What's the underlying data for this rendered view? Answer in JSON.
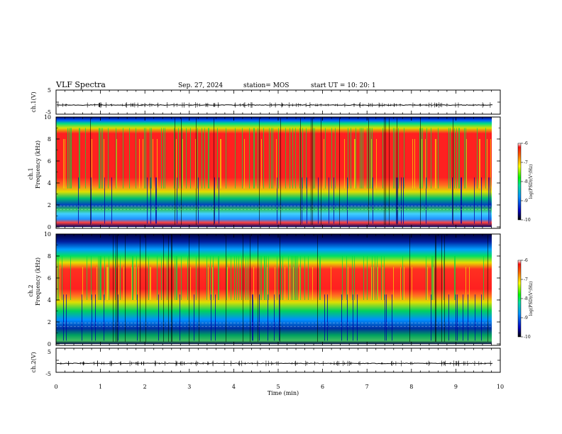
{
  "header": {
    "title": "VLF Spectra",
    "date": "Sep. 27, 2024",
    "station": "station= MOS",
    "start": "start  UT  =   10: 20: 1"
  },
  "chart_data": [
    {
      "type": "line",
      "panel": "waveform-ch1",
      "ylabel": "ch.1(V)",
      "ylim": [
        -5,
        5
      ],
      "yticks": [
        "5",
        "-5"
      ],
      "xlim": [
        0,
        10
      ],
      "baseline": -1.2,
      "series": [
        {
          "values": []
        }
      ]
    },
    {
      "type": "heatmap",
      "panel": "spectrogram-ch1",
      "ylabel_line1": "ch.1",
      "ylabel_line2": "Frequency  (kHz)",
      "ylim": [
        0,
        10
      ],
      "yticks": [
        "0",
        "2",
        "4",
        "6",
        "8",
        "10"
      ],
      "xlim": [
        0,
        9.85
      ],
      "colorbar": {
        "label": "log(PSD)(V²/Hz)",
        "range": [
          -10,
          -6
        ],
        "ticks": [
          "-6",
          "-7",
          "-8",
          "-9",
          "-10"
        ]
      },
      "colors": {
        "peak": "#ff2020",
        "mid": "#f0f000",
        "low": "#00dd40",
        "floor": "#0000a0"
      }
    },
    {
      "type": "heatmap",
      "panel": "spectrogram-ch2",
      "ylabel_line1": "ch.2",
      "ylabel_line2": "Frequency  (kHz)",
      "ylim": [
        0,
        10
      ],
      "yticks": [
        "0",
        "2",
        "4",
        "6",
        "8",
        "10"
      ],
      "xlim": [
        0,
        9.85
      ],
      "colorbar": {
        "label": "log(PSD)(V²/Hz)",
        "range": [
          -10,
          -6
        ],
        "ticks": [
          "-6",
          "-7",
          "-8",
          "-9",
          "-10"
        ]
      },
      "colors": {
        "peak": "#ff2020",
        "mid": "#f0f000",
        "low": "#00dd40",
        "floor": "#0000a0"
      }
    },
    {
      "type": "line",
      "panel": "waveform-ch2",
      "ylabel": "ch.2(V)",
      "ylim": [
        -5,
        5
      ],
      "yticks": [
        "5",
        "-5"
      ],
      "xlim": [
        0,
        10
      ],
      "baseline": -1.3,
      "series": [
        {
          "values": []
        }
      ]
    }
  ],
  "xaxis": {
    "label": "Time  (min)",
    "ticks": [
      "0",
      "1",
      "2",
      "3",
      "4",
      "5",
      "6",
      "7",
      "8",
      "9",
      "10"
    ]
  }
}
